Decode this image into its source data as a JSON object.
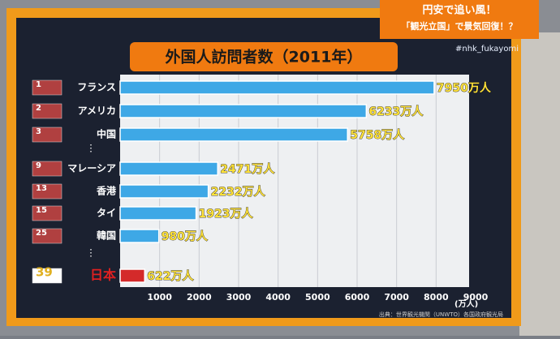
{
  "header": {
    "banner_line1": "円安で追い風！",
    "banner_line2": "「観光立国」で景気回復！？",
    "hashtag": "#nhk_fukayomi"
  },
  "chart_data": {
    "type": "bar",
    "orientation": "horizontal",
    "title": "外国人訪問者数（2011年）",
    "ranks": [
      "1",
      "2",
      "3",
      "9",
      "13",
      "15",
      "25",
      "39"
    ],
    "categories": [
      "フランス",
      "アメリカ",
      "中国",
      "マレーシア",
      "香港",
      "タイ",
      "韓国",
      "日本"
    ],
    "values": [
      7950,
      6233,
      5758,
      2471,
      2232,
      1923,
      980,
      622
    ],
    "value_labels": [
      "7950万人",
      "6233万人",
      "5758万人",
      "2471万人",
      "2232万人",
      "1923万人",
      "980万人",
      "622万人"
    ],
    "colors": [
      "#3ea8e6",
      "#3ea8e6",
      "#3ea8e6",
      "#3ea8e6",
      "#3ea8e6",
      "#3ea8e6",
      "#3ea8e6",
      "#d42a2a"
    ],
    "xlim": [
      0,
      9000
    ],
    "xticks": [
      1000,
      2000,
      3000,
      4000,
      5000,
      6000,
      7000,
      8000,
      9000
    ],
    "x_unit": "(万人)",
    "grid": true,
    "source": "出典：世界観光機関（UNWTO）各国政府観光局"
  }
}
